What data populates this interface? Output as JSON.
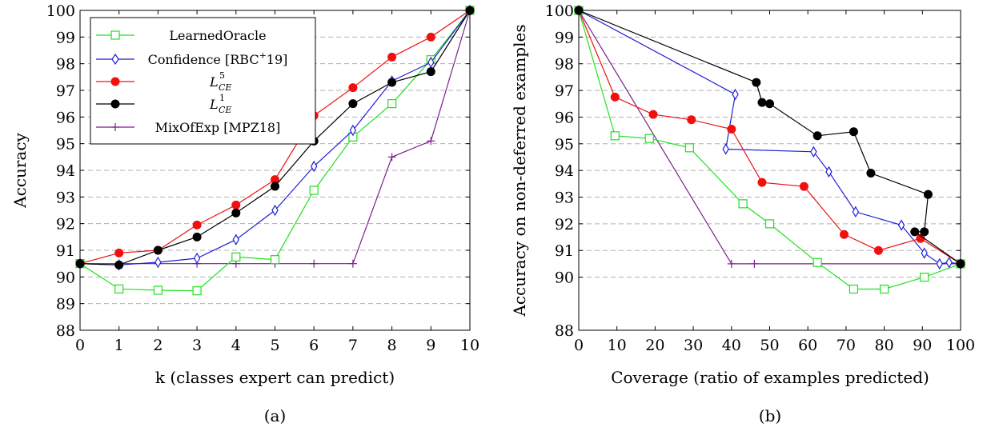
{
  "captions": [
    "(a)",
    "(b)"
  ],
  "colors": {
    "learned_oracle": "#22e022",
    "confidence": "#1f1fd6",
    "lce5": "#f01010",
    "lce1": "#000000",
    "mixofexp": "#7a1f8a",
    "grid": "#b0b0b0"
  },
  "legend": {
    "learned_oracle": "LearnedOracle",
    "confidence": "Confidence [RBC",
    "confidence_sup": "+",
    "confidence_tail": "19]",
    "lce5_base": "L",
    "lce5_sup": "5",
    "lce5_sub": "CE",
    "lce1_base": "L",
    "lce1_sup": "1",
    "lce1_sub": "CE",
    "mixofexp": "MixOfExp [MPZ18]"
  },
  "chart_data": [
    {
      "type": "line",
      "xlabel": "k (classes expert can predict)",
      "ylabel": "Accuracy",
      "xlim": [
        0,
        10
      ],
      "ylim": [
        88,
        100
      ],
      "x_ticks": [
        0,
        1,
        2,
        3,
        4,
        5,
        6,
        7,
        8,
        9,
        10
      ],
      "y_ticks": [
        88,
        89,
        90,
        91,
        92,
        93,
        94,
        95,
        96,
        97,
        98,
        99,
        100
      ],
      "grid": "horizontal dashed",
      "legend_position": "top-left",
      "series": [
        {
          "key": "learned_oracle",
          "marker": "square-open",
          "x": [
            0,
            1,
            2,
            3,
            4,
            5,
            6,
            7,
            8,
            9,
            10
          ],
          "y": [
            90.5,
            89.55,
            89.5,
            89.48,
            90.75,
            90.65,
            93.25,
            95.25,
            96.5,
            98.15,
            100
          ]
        },
        {
          "key": "confidence",
          "marker": "diamond-open",
          "x": [
            0,
            1,
            2,
            3,
            4,
            5,
            6,
            7,
            8,
            9,
            10
          ],
          "y": [
            90.5,
            90.45,
            90.55,
            90.7,
            91.4,
            92.5,
            94.15,
            95.5,
            97.35,
            98.05,
            100
          ]
        },
        {
          "key": "lce5",
          "marker": "circle-filled",
          "x": [
            0,
            1,
            2,
            3,
            4,
            5,
            6,
            7,
            8,
            9,
            10
          ],
          "y": [
            90.5,
            90.9,
            91.0,
            91.95,
            92.7,
            93.65,
            96.05,
            97.1,
            98.25,
            99.0,
            100
          ]
        },
        {
          "key": "lce1",
          "marker": "circle-filled",
          "x": [
            0,
            1,
            2,
            3,
            4,
            5,
            6,
            7,
            8,
            9,
            10
          ],
          "y": [
            90.5,
            90.45,
            91.0,
            91.5,
            92.4,
            93.4,
            95.1,
            96.5,
            97.3,
            97.7,
            100
          ]
        },
        {
          "key": "mixofexp",
          "marker": "plus",
          "x": [
            0,
            1,
            2,
            3,
            4,
            5,
            6,
            7,
            8,
            9,
            10
          ],
          "y": [
            90.5,
            90.5,
            90.5,
            90.5,
            90.5,
            90.5,
            90.5,
            90.5,
            94.5,
            95.1,
            100
          ]
        }
      ]
    },
    {
      "type": "line",
      "xlabel": "Coverage (ratio of examples predicted)",
      "ylabel": "Accuracy on non-deferred examples",
      "xlim": [
        0,
        100
      ],
      "ylim": [
        88,
        100
      ],
      "x_ticks": [
        0,
        10,
        20,
        30,
        40,
        50,
        60,
        70,
        80,
        90,
        100
      ],
      "y_ticks": [
        88,
        90,
        91,
        92,
        93,
        94,
        95,
        96,
        97,
        98,
        99,
        100
      ],
      "grid": "horizontal dashed",
      "series": [
        {
          "key": "learned_oracle",
          "marker": "square-open",
          "x": [
            0,
            9.5,
            18.5,
            29,
            43,
            50,
            62.5,
            72,
            80,
            90.5,
            100
          ],
          "y": [
            100,
            95.3,
            95.2,
            94.85,
            92.75,
            92.0,
            90.55,
            89.55,
            89.55,
            90.0,
            90.5
          ]
        },
        {
          "key": "confidence",
          "marker": "diamond-open",
          "x": [
            0,
            41,
            38.5,
            61.5,
            65.5,
            72.5,
            84.5,
            90.5,
            94.5,
            97,
            100
          ],
          "y": [
            100,
            96.85,
            94.8,
            94.7,
            93.95,
            92.45,
            91.95,
            90.9,
            90.5,
            90.55,
            90.5
          ]
        },
        {
          "key": "lce5",
          "marker": "circle-filled",
          "x": [
            0,
            9.5,
            19.5,
            29.5,
            40,
            48,
            59,
            69.5,
            78.5,
            89.5,
            100
          ],
          "y": [
            100,
            96.75,
            96.1,
            95.9,
            95.55,
            93.55,
            93.4,
            91.6,
            91.0,
            91.45,
            90.5
          ]
        },
        {
          "key": "lce1",
          "marker": "circle-filled",
          "x": [
            0,
            46.5,
            48,
            50,
            62.5,
            72,
            76.5,
            91.5,
            90.5,
            88,
            100
          ],
          "y": [
            100,
            97.3,
            96.55,
            96.5,
            95.3,
            95.45,
            93.9,
            93.1,
            91.7,
            91.7,
            90.5
          ]
        },
        {
          "key": "mixofexp",
          "marker": "plus",
          "x": [
            0,
            40,
            46,
            100
          ],
          "y": [
            100,
            90.5,
            90.5,
            90.5
          ]
        }
      ]
    }
  ]
}
